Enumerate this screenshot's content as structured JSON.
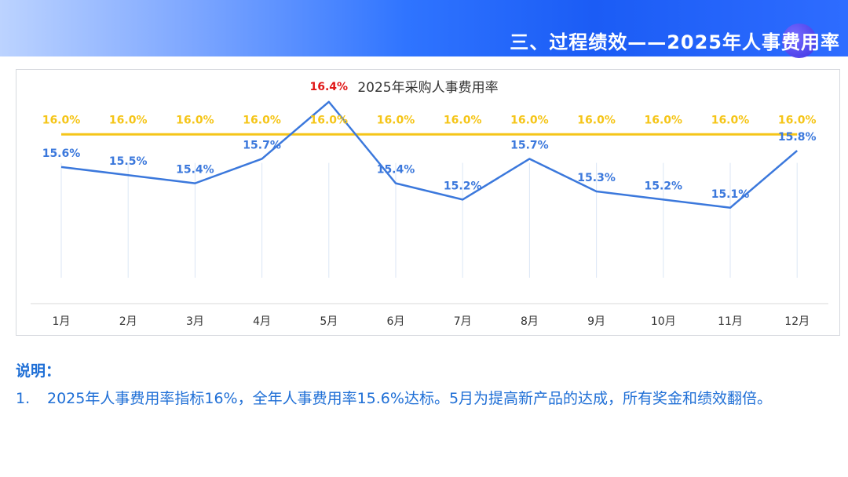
{
  "header": {
    "title": "三、过程绩效——2025年人事费用率"
  },
  "colors": {
    "actual": "#3b78dc",
    "target": "#f5c518",
    "peak": "#e01818",
    "notes": "#1f6fd6"
  },
  "chart_data": {
    "type": "line",
    "title": "2025年采购人事费用率",
    "categories": [
      "1月",
      "2月",
      "3月",
      "4月",
      "5月",
      "6月",
      "7月",
      "8月",
      "9月",
      "10月",
      "11月",
      "12月"
    ],
    "series": [
      {
        "values": [
          15.6,
          15.5,
          15.4,
          15.7,
          16.4,
          15.4,
          15.2,
          15.7,
          15.3,
          15.2,
          15.1,
          15.8
        ],
        "labels": [
          "15.6%",
          "15.5%",
          "15.4%",
          "15.7%",
          "16.4%",
          "15.4%",
          "15.2%",
          "15.7%",
          "15.3%",
          "15.2%",
          "15.1%",
          "15.8%"
        ]
      },
      {
        "values": [
          16.0,
          16.0,
          16.0,
          16.0,
          16.0,
          16.0,
          16.0,
          16.0,
          16.0,
          16.0,
          16.0,
          16.0
        ],
        "labels": [
          "16.0%",
          "16.0%",
          "16.0%",
          "16.0%",
          "16.0%",
          "16.0%",
          "16.0%",
          "16.0%",
          "16.0%",
          "16.0%",
          "16.0%",
          "16.0%"
        ]
      }
    ],
    "highlight_index": 4,
    "ylim": [
      14.0,
      16.6
    ],
    "grid": "vertical-light",
    "legend": "none"
  },
  "notes": {
    "heading": "说明：",
    "items": [
      {
        "num": "1.",
        "text": "2025年人事费用率指标16%，全年人事费用率15.6%达标。5月为提高新产品的达成，所有奖金和绩效翻倍。"
      }
    ]
  }
}
